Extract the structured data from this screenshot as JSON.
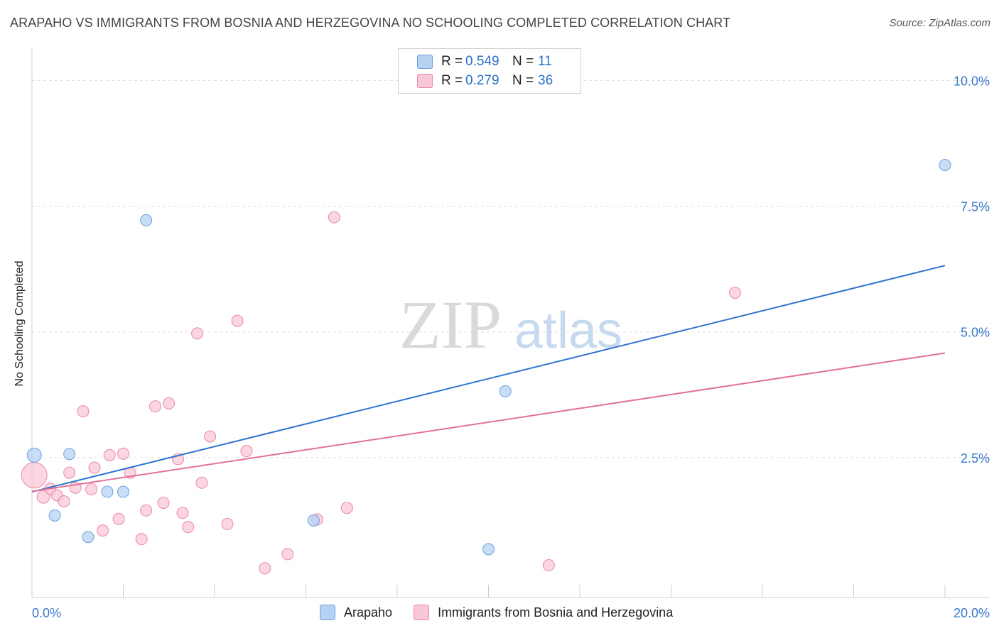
{
  "title": "ARAPAHO VS IMMIGRANTS FROM BOSNIA AND HERZEGOVINA NO SCHOOLING COMPLETED CORRELATION CHART",
  "source": "Source: ZipAtlas.com",
  "watermark": {
    "zip": "ZIP",
    "atlas": "atlas"
  },
  "legend": {
    "rows": [
      {
        "r_label": "R =",
        "r_value": "0.549",
        "n_label": "N =",
        "n_value": "11",
        "color": "#b6d2f3",
        "border": "#6d9fde"
      },
      {
        "r_label": "R =",
        "r_value": "0.279",
        "n_label": "N =",
        "n_value": "36",
        "color": "#f9c7d6",
        "border": "#e88aa8"
      }
    ]
  },
  "bottom_legend": {
    "items": [
      {
        "label": "Arapaho",
        "color": "#b6d2f3",
        "border": "#6d9fde"
      },
      {
        "label": "Immigrants from Bosnia and Herzegovina",
        "color": "#f9c7d6",
        "border": "#e88aa8"
      }
    ]
  },
  "chart_data": {
    "type": "scatter",
    "title": "ARAPAHO VS IMMIGRANTS FROM BOSNIA AND HERZEGOVINA NO SCHOOLING COMPLETED CORRELATION CHART",
    "xlabel": "",
    "ylabel": "No Schooling Completed",
    "xlim": [
      0,
      20
    ],
    "ylim": [
      0,
      10.5
    ],
    "x_tick_labels": [
      "0.0%",
      "20.0%"
    ],
    "y_ticks": [
      2.5,
      5.0,
      7.5,
      10.0
    ],
    "y_tick_labels": [
      "2.5%",
      "5.0%",
      "7.5%",
      "10.0%"
    ],
    "series": [
      {
        "name": "Arapaho",
        "color": "#6d9fde",
        "fill": "#b6d2f3",
        "line_color": "#2f74d0",
        "trend": {
          "x": [
            0,
            20
          ],
          "y": [
            1.82,
            6.32
          ]
        },
        "points": [
          {
            "x": 0.05,
            "y": 2.55,
            "size": 10
          },
          {
            "x": 0.82,
            "y": 2.57,
            "size": 8
          },
          {
            "x": 0.5,
            "y": 1.35,
            "size": 8
          },
          {
            "x": 1.23,
            "y": 0.92,
            "size": 8
          },
          {
            "x": 1.65,
            "y": 1.82,
            "size": 8
          },
          {
            "x": 2.0,
            "y": 1.82,
            "size": 8
          },
          {
            "x": 2.5,
            "y": 7.22,
            "size": 8
          },
          {
            "x": 6.17,
            "y": 1.25,
            "size": 8
          },
          {
            "x": 10.37,
            "y": 3.82,
            "size": 8
          },
          {
            "x": 10.0,
            "y": 0.68,
            "size": 8
          },
          {
            "x": 20.0,
            "y": 8.32,
            "size": 8
          }
        ]
      },
      {
        "name": "Immigrants from Bosnia and Herzegovina",
        "color": "#e88aa8",
        "fill": "#f9c7d6",
        "line_color": "#e2709a",
        "trend": {
          "x": [
            0,
            20
          ],
          "y": [
            1.83,
            4.58
          ]
        },
        "points": [
          {
            "x": 0.05,
            "y": 2.15,
            "size": 18
          },
          {
            "x": 0.25,
            "y": 1.72,
            "size": 9
          },
          {
            "x": 0.4,
            "y": 1.88,
            "size": 8
          },
          {
            "x": 0.55,
            "y": 1.75,
            "size": 8
          },
          {
            "x": 0.7,
            "y": 1.63,
            "size": 8
          },
          {
            "x": 0.82,
            "y": 2.2,
            "size": 8
          },
          {
            "x": 0.95,
            "y": 1.9,
            "size": 8
          },
          {
            "x": 1.12,
            "y": 3.42,
            "size": 8
          },
          {
            "x": 1.3,
            "y": 1.87,
            "size": 8
          },
          {
            "x": 1.37,
            "y": 2.3,
            "size": 8
          },
          {
            "x": 1.55,
            "y": 1.05,
            "size": 8
          },
          {
            "x": 1.7,
            "y": 2.55,
            "size": 8
          },
          {
            "x": 1.9,
            "y": 1.28,
            "size": 8
          },
          {
            "x": 2.0,
            "y": 2.58,
            "size": 8
          },
          {
            "x": 2.15,
            "y": 2.2,
            "size": 8
          },
          {
            "x": 2.4,
            "y": 0.88,
            "size": 8
          },
          {
            "x": 2.5,
            "y": 1.45,
            "size": 8
          },
          {
            "x": 2.7,
            "y": 3.52,
            "size": 8
          },
          {
            "x": 2.88,
            "y": 1.6,
            "size": 8
          },
          {
            "x": 3.0,
            "y": 3.58,
            "size": 8
          },
          {
            "x": 3.2,
            "y": 2.47,
            "size": 8
          },
          {
            "x": 3.3,
            "y": 1.4,
            "size": 8
          },
          {
            "x": 3.42,
            "y": 1.12,
            "size": 8
          },
          {
            "x": 3.62,
            "y": 4.97,
            "size": 8
          },
          {
            "x": 3.72,
            "y": 2.0,
            "size": 8
          },
          {
            "x": 3.9,
            "y": 2.92,
            "size": 8
          },
          {
            "x": 4.28,
            "y": 1.18,
            "size": 8
          },
          {
            "x": 4.5,
            "y": 5.22,
            "size": 8
          },
          {
            "x": 4.7,
            "y": 2.63,
            "size": 8
          },
          {
            "x": 5.1,
            "y": 0.3,
            "size": 8
          },
          {
            "x": 5.6,
            "y": 0.58,
            "size": 8
          },
          {
            "x": 6.25,
            "y": 1.27,
            "size": 8
          },
          {
            "x": 6.62,
            "y": 7.28,
            "size": 8
          },
          {
            "x": 6.9,
            "y": 1.5,
            "size": 8
          },
          {
            "x": 11.32,
            "y": 0.36,
            "size": 8
          },
          {
            "x": 15.4,
            "y": 5.78,
            "size": 8
          }
        ]
      }
    ]
  }
}
